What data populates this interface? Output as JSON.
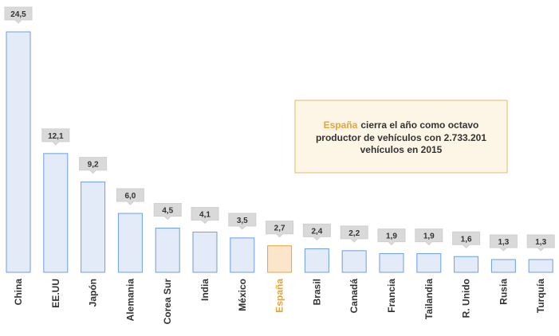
{
  "chart_data": {
    "type": "bar",
    "categories": [
      "China",
      "EE.UU",
      "Japón",
      "Alemania",
      "Corea Sur",
      "India",
      "México",
      "España",
      "Brasil",
      "Canadá",
      "Francia",
      "Tailandia",
      "R. Unido",
      "Rusia",
      "Turquía"
    ],
    "values": [
      24.5,
      12.1,
      9.2,
      6.0,
      4.5,
      4.1,
      3.5,
      2.7,
      2.4,
      2.2,
      1.9,
      1.9,
      1.6,
      1.3,
      1.3
    ],
    "value_labels": [
      "24,5",
      "12,1",
      "9,2",
      "6,0",
      "4,5",
      "4,1",
      "3,5",
      "2,7",
      "2,4",
      "2,2",
      "1,9",
      "1,9",
      "1,6",
      "1,3",
      "1,3"
    ],
    "colors": [
      "#e3ebf9",
      "#e3ebf9",
      "#e3ebf9",
      "#e3ebf9",
      "#e3ebf9",
      "#e3ebf9",
      "#e3ebf9",
      "#fbe6cc",
      "#e3ebf9",
      "#e3ebf9",
      "#e3ebf9",
      "#e3ebf9",
      "#e3ebf9",
      "#e3ebf9",
      "#e3ebf9"
    ],
    "edge_colors": [
      "#6c9ee0",
      "#6c9ee0",
      "#6c9ee0",
      "#6c9ee0",
      "#6c9ee0",
      "#6c9ee0",
      "#6c9ee0",
      "#e8a23a",
      "#6c9ee0",
      "#6c9ee0",
      "#6c9ee0",
      "#6c9ee0",
      "#6c9ee0",
      "#6c9ee0",
      "#6c9ee0"
    ],
    "label_colors": [
      "#333333",
      "#333333",
      "#333333",
      "#333333",
      "#333333",
      "#333333",
      "#333333",
      "#e8a23a",
      "#333333",
      "#333333",
      "#333333",
      "#333333",
      "#333333",
      "#333333",
      "#333333"
    ],
    "ylim": [
      0,
      24.5
    ],
    "annotation": {
      "highlight": "España",
      "text": [
        "cierra el año como octavo",
        "productor de vehículos con 2.733.201",
        "vehículos en 2015"
      ],
      "highlight_color": "#e8a23a"
    }
  }
}
